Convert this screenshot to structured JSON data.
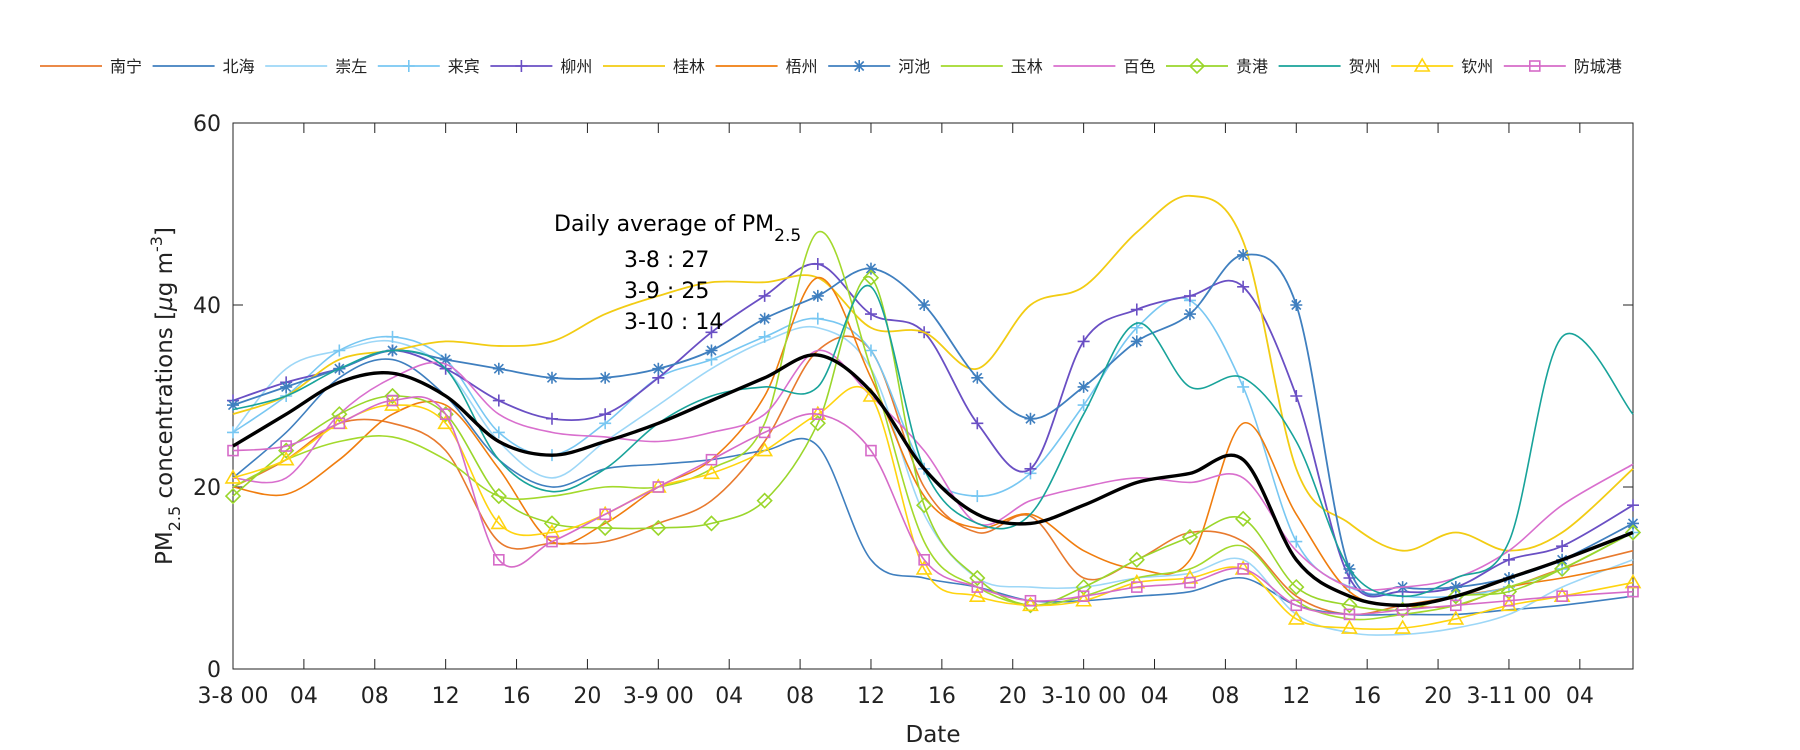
{
  "chart_data": {
    "type": "line",
    "title": "",
    "xlabel": "Date",
    "ylabel": "PM2.5 concentrations [µg m-3]",
    "ylabel_parts": {
      "main": "PM",
      "sub": "2.5",
      "rest": " concentrations [",
      "mu": "µ",
      "unit": "g m",
      "sup": "-3",
      "close": "]"
    },
    "xlim": [
      0,
      79
    ],
    "ylim": [
      0,
      60
    ],
    "yticks": [
      0,
      20,
      40,
      60
    ],
    "xticks": [
      {
        "x": 0,
        "label": "3-8 00"
      },
      {
        "x": 4,
        "label": "04"
      },
      {
        "x": 8,
        "label": "08"
      },
      {
        "x": 12,
        "label": "12"
      },
      {
        "x": 16,
        "label": "16"
      },
      {
        "x": 20,
        "label": "20"
      },
      {
        "x": 24,
        "label": "3-9 00"
      },
      {
        "x": 28,
        "label": "04"
      },
      {
        "x": 32,
        "label": "08"
      },
      {
        "x": 36,
        "label": "12"
      },
      {
        "x": 40,
        "label": "16"
      },
      {
        "x": 44,
        "label": "20"
      },
      {
        "x": 48,
        "label": "3-10 00"
      },
      {
        "x": 52,
        "label": "04"
      },
      {
        "x": 56,
        "label": "08"
      },
      {
        "x": 60,
        "label": "12"
      },
      {
        "x": 64,
        "label": "16"
      },
      {
        "x": 68,
        "label": "20"
      },
      {
        "x": 72,
        "label": "3-11 00"
      },
      {
        "x": 76,
        "label": "04"
      }
    ],
    "x": [
      0,
      3,
      6,
      9,
      12,
      15,
      18,
      21,
      24,
      27,
      30,
      33,
      36,
      39,
      42,
      45,
      48,
      51,
      54,
      57,
      60,
      63,
      66,
      69,
      72,
      75,
      79
    ],
    "annotation": {
      "title": "Daily average of PM",
      "title_sub": "2.5",
      "lines": [
        "3-8 : 27",
        "3-9 : 25",
        "3-10 : 14"
      ]
    },
    "series": [
      {
        "name": "南宁",
        "color": "#e87a2e",
        "marker": "none",
        "width": 1.6,
        "values": [
          20,
          23,
          27,
          27,
          24,
          14,
          13.8,
          14,
          16,
          18.5,
          25,
          35,
          35,
          20,
          15,
          16.8,
          10,
          12,
          15,
          14,
          8,
          6,
          7,
          8,
          9,
          11,
          13
        ]
      },
      {
        "name": "北海",
        "color": "#3f7fbf",
        "marker": "none",
        "width": 1.6,
        "values": [
          21,
          26,
          32,
          34,
          30,
          23,
          20,
          22,
          22.5,
          23,
          24,
          24.5,
          12,
          10,
          9,
          7.5,
          7.5,
          8,
          8.5,
          10,
          7,
          6,
          6,
          6,
          6.5,
          7,
          8
        ]
      },
      {
        "name": "崇左",
        "color": "#9dd7f7",
        "marker": "none",
        "width": 1.6,
        "values": [
          26,
          33,
          35,
          36,
          33,
          25,
          21,
          25,
          29,
          33,
          36,
          37.5,
          33,
          17,
          10,
          9,
          9,
          10,
          10.5,
          12,
          6,
          4,
          3.8,
          4.5,
          6,
          9,
          12
        ]
      },
      {
        "name": "来宾",
        "color": "#78c7f2",
        "marker": "plus",
        "width": 1.6,
        "values": [
          26,
          30,
          35,
          36.5,
          34,
          26,
          23.5,
          27,
          32,
          34,
          36.5,
          38.5,
          35,
          22,
          19,
          21.5,
          29,
          37.5,
          40.5,
          31,
          14,
          9,
          8,
          8,
          9,
          11,
          15
        ]
      },
      {
        "name": "柳州",
        "color": "#6a4fc4",
        "marker": "plus",
        "width": 1.8,
        "values": [
          29.5,
          31.5,
          33,
          35,
          33,
          29.5,
          27.5,
          28,
          32,
          37,
          41,
          44.5,
          39,
          37,
          27,
          22,
          36,
          39.5,
          41,
          42,
          30,
          10,
          8.5,
          9,
          12,
          13.5,
          18
        ]
      },
      {
        "name": "桂林",
        "color": "#f2cc13",
        "marker": "none",
        "width": 1.8,
        "values": [
          28,
          30,
          34,
          35,
          36,
          35.5,
          36,
          39,
          41,
          42.5,
          42.5,
          43,
          37.5,
          37,
          33,
          40,
          42,
          48,
          52,
          47,
          22,
          16,
          13,
          15,
          13,
          15,
          22
        ]
      },
      {
        "name": "梧州",
        "color": "#f07d0e",
        "marker": "none",
        "width": 1.6,
        "values": [
          20,
          19.2,
          23,
          28,
          29,
          22,
          14,
          16,
          20,
          23,
          30,
          43,
          32,
          19,
          15.5,
          17,
          13,
          11,
          12,
          27,
          17,
          8.5,
          7,
          7,
          9,
          10,
          11.5
        ]
      },
      {
        "name": "河池",
        "color": "#3f7fbf",
        "marker": "asterisk",
        "width": 1.8,
        "values": [
          29,
          31,
          33,
          35,
          34,
          33,
          32,
          32,
          33,
          35,
          38.5,
          41,
          44,
          40,
          32,
          27.5,
          31,
          36,
          39,
          45.5,
          40,
          11,
          9,
          9,
          10,
          12,
          16
        ]
      },
      {
        "name": "玉林",
        "color": "#a3d92c",
        "marker": "none",
        "width": 1.6,
        "values": [
          20,
          23,
          25,
          25.5,
          23,
          19,
          19,
          20,
          20,
          22,
          27,
          48,
          33,
          14,
          9,
          7,
          8,
          10,
          11,
          13.5,
          7.5,
          5.5,
          6,
          7,
          9,
          11,
          15
        ]
      },
      {
        "name": "百色",
        "color": "#d96fce",
        "marker": "none",
        "width": 1.6,
        "values": [
          21,
          21,
          28,
          32,
          33.5,
          28,
          26,
          25.5,
          25,
          26,
          28,
          35,
          30,
          24,
          16,
          18.5,
          20,
          21,
          20.5,
          21,
          13,
          9,
          9,
          10,
          13,
          18,
          22.5
        ]
      },
      {
        "name": "贵港",
        "color": "#9ad62b",
        "marker": "diamond",
        "width": 1.6,
        "values": [
          19,
          24,
          28,
          30,
          28,
          19,
          16,
          15.5,
          15.5,
          16,
          18.5,
          27,
          43,
          18,
          10,
          7,
          9,
          12,
          14.5,
          16.5,
          9,
          7,
          6.5,
          8,
          8.5,
          11,
          15
        ]
      },
      {
        "name": "贺州",
        "color": "#18a39a",
        "marker": "none",
        "width": 1.6,
        "values": [
          28.5,
          30,
          33,
          35,
          33,
          23,
          19.5,
          22,
          27,
          30,
          31,
          31,
          42,
          22,
          16,
          17,
          28,
          38,
          31,
          32,
          25,
          11,
          8,
          10,
          14,
          36.5,
          28
        ]
      },
      {
        "name": "钦州",
        "color": "#ffd40f",
        "marker": "triangle",
        "width": 1.6,
        "values": [
          21,
          23,
          27,
          29,
          27,
          16,
          15,
          17,
          20,
          21.5,
          24,
          28,
          30,
          11,
          8,
          7,
          7.5,
          9.5,
          10,
          11,
          5.5,
          4.5,
          4.5,
          5.5,
          7,
          8,
          9.5
        ]
      },
      {
        "name": "防城港",
        "color": "#d66bc8",
        "marker": "square",
        "width": 1.6,
        "values": [
          24,
          24.5,
          27,
          29.5,
          28,
          12,
          14,
          17,
          20,
          23,
          26,
          28,
          24,
          12,
          9,
          7.5,
          8,
          9,
          9.5,
          11,
          7,
          6,
          6.5,
          7,
          7.5,
          8,
          8.5
        ]
      },
      {
        "name": "average",
        "color": "#000000",
        "marker": "none",
        "width": 3.4,
        "legend": false,
        "values": [
          24.5,
          28,
          31.5,
          32.5,
          30,
          25,
          23.5,
          25,
          27,
          29.5,
          32,
          34.5,
          30.5,
          22,
          17,
          16,
          18,
          20.5,
          21.5,
          23,
          12,
          8,
          7,
          8,
          10,
          12,
          15
        ]
      }
    ]
  }
}
